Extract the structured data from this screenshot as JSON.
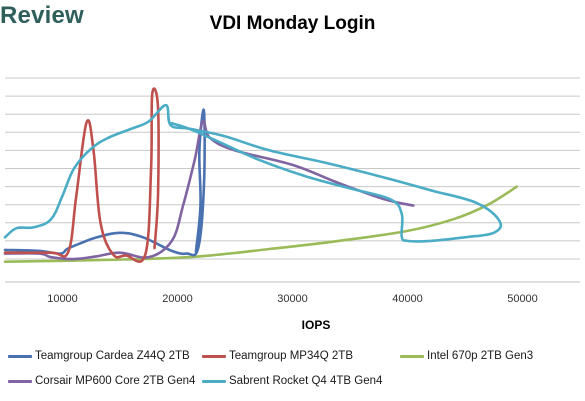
{
  "brand": "Review",
  "chart_data": {
    "type": "line",
    "title": "VDI Monday Login",
    "xlabel": "IOPS",
    "ylabel": "",
    "xlim": [
      5000,
      55000
    ],
    "ylim": [
      0,
      11
    ],
    "x_ticks": [
      "10000",
      "20000",
      "30000",
      "40000",
      "50000"
    ],
    "grid": true,
    "legend_position": "bottom",
    "series": [
      {
        "name": "Teamgroup Cardea Z44Q 2TB",
        "color": "#4a72b0",
        "points": [
          [
            5000,
            0.5
          ],
          [
            8000,
            0.45
          ],
          [
            9800,
            0.3
          ],
          [
            10400,
            0.55
          ],
          [
            11500,
            0.85
          ],
          [
            13000,
            1.2
          ],
          [
            15000,
            1.45
          ],
          [
            17000,
            1.2
          ],
          [
            19500,
            0.45
          ],
          [
            20800,
            0.3
          ],
          [
            21800,
            0.6
          ],
          [
            22300,
            4.0
          ],
          [
            22300,
            8.2
          ],
          [
            21900,
            6.0
          ],
          [
            22000,
            3.0
          ],
          [
            21600,
            0.4
          ]
        ]
      },
      {
        "name": "Teamgroup MP34Q 2TB",
        "color": "#c0504d",
        "points": [
          [
            5000,
            0.35
          ],
          [
            9000,
            0.35
          ],
          [
            10500,
            0.4
          ],
          [
            11200,
            3.5
          ],
          [
            12100,
            7.55
          ],
          [
            12700,
            6.0
          ],
          [
            13300,
            2.0
          ],
          [
            14400,
            0.25
          ],
          [
            15500,
            0.2
          ],
          [
            17200,
            0.25
          ],
          [
            17700,
            5.0
          ],
          [
            17800,
            9.1
          ],
          [
            18300,
            8.4
          ],
          [
            18300,
            3.5
          ],
          [
            18000,
            0.6
          ]
        ]
      },
      {
        "name": "Intel 670p 2TB Gen3",
        "color": "#9bbb59",
        "points": [
          [
            5000,
            -0.15
          ],
          [
            10000,
            -0.1
          ],
          [
            17000,
            0.0
          ],
          [
            22000,
            0.15
          ],
          [
            28000,
            0.55
          ],
          [
            34000,
            1.0
          ],
          [
            40000,
            1.55
          ],
          [
            44000,
            2.2
          ],
          [
            47000,
            3.0
          ],
          [
            49500,
            4.0
          ]
        ]
      },
      {
        "name": "Corsair MP600 Core 2TB Gen4",
        "color": "#8064a2",
        "points": [
          [
            5000,
            0.3
          ],
          [
            8000,
            0.3
          ],
          [
            9000,
            0.1
          ],
          [
            11000,
            0.0
          ],
          [
            13000,
            0.15
          ],
          [
            15000,
            0.35
          ],
          [
            17500,
            0.1
          ],
          [
            19500,
            1.0
          ],
          [
            20500,
            3.0
          ],
          [
            21500,
            5.5
          ],
          [
            22200,
            7.6
          ],
          [
            22800,
            6.7
          ],
          [
            25000,
            6.0
          ],
          [
            30000,
            5.2
          ],
          [
            34000,
            4.2
          ],
          [
            38000,
            3.3
          ],
          [
            40500,
            2.95
          ]
        ]
      },
      {
        "name": "Sabrent Rocket Q4 4TB Gen4",
        "color": "#4bacc6",
        "points": [
          [
            5000,
            1.2
          ],
          [
            6000,
            1.7
          ],
          [
            7500,
            1.75
          ],
          [
            9000,
            2.2
          ],
          [
            10000,
            3.5
          ],
          [
            11000,
            5.0
          ],
          [
            12500,
            6.1
          ],
          [
            14000,
            6.7
          ],
          [
            16000,
            7.2
          ],
          [
            17500,
            7.6
          ],
          [
            19000,
            8.5
          ],
          [
            19400,
            7.4
          ],
          [
            21000,
            7.2
          ],
          [
            24000,
            6.8
          ],
          [
            28000,
            6.0
          ],
          [
            33000,
            5.3
          ],
          [
            38000,
            4.5
          ],
          [
            42000,
            3.8
          ],
          [
            46000,
            3.1
          ],
          [
            48000,
            2.1
          ],
          [
            47500,
            1.45
          ],
          [
            45000,
            1.2
          ],
          [
            42000,
            1.0
          ],
          [
            40000,
            1.0
          ],
          [
            39500,
            1.25
          ],
          [
            39500,
            2.5
          ],
          [
            38500,
            3.3
          ],
          [
            35000,
            3.9
          ],
          [
            31000,
            4.6
          ],
          [
            27000,
            5.5
          ],
          [
            23500,
            6.5
          ],
          [
            21000,
            7.2
          ],
          [
            19500,
            7.5
          ]
        ]
      }
    ]
  }
}
